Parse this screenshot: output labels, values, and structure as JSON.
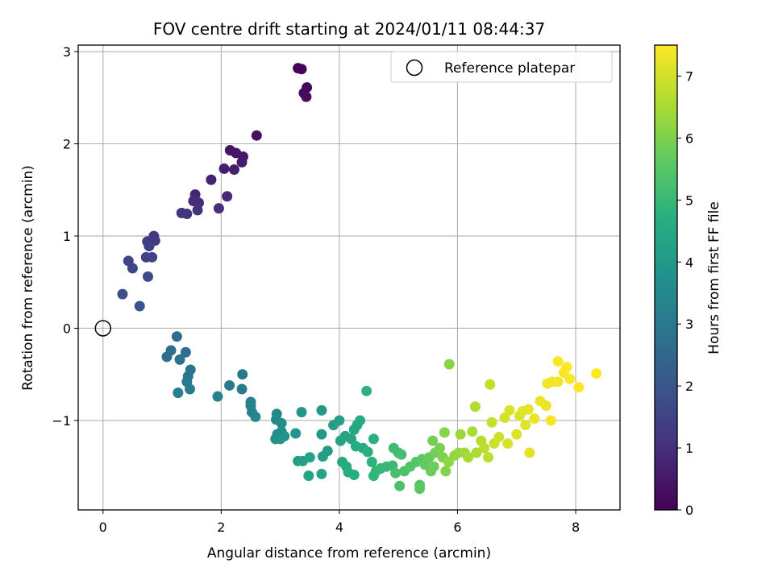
{
  "chart_data": {
    "type": "scatter",
    "title": "FOV centre drift starting at 2024/01/11 08:44:37",
    "xlabel": "Angular distance from reference (arcmin)",
    "ylabel": "Rotation from reference (arcmin)",
    "xlim": [
      -0.42,
      8.75
    ],
    "ylim": [
      -1.97,
      3.07
    ],
    "xticks": [
      0,
      2,
      4,
      6,
      8
    ],
    "yticks": [
      -1,
      0,
      1,
      2,
      3
    ],
    "xtick_labels": [
      "0",
      "2",
      "4",
      "6",
      "8"
    ],
    "ytick_labels": [
      "−1",
      "0",
      "1",
      "2",
      "3"
    ],
    "grid": true,
    "legend": {
      "placement": "top-right",
      "entries": [
        "Reference platepar"
      ]
    },
    "reference_point": {
      "x": 0,
      "y": 0,
      "label": "Reference platepar"
    },
    "colorbar": {
      "label": "Hours from first FF file",
      "colormap": "viridis",
      "range": [
        0,
        7.5
      ],
      "ticks": [
        0,
        1,
        2,
        3,
        4,
        5,
        6,
        7
      ],
      "tick_labels": [
        "0",
        "1",
        "2",
        "3",
        "4",
        "5",
        "6",
        "7"
      ]
    },
    "series": [
      {
        "color_by": "hours",
        "points": [
          {
            "x": 3.3,
            "y": 2.82,
            "h": 0.05
          },
          {
            "x": 3.36,
            "y": 2.81,
            "h": 0.1
          },
          {
            "x": 3.45,
            "y": 2.61,
            "h": 0.15
          },
          {
            "x": 3.4,
            "y": 2.55,
            "h": 0.2
          },
          {
            "x": 3.44,
            "y": 2.51,
            "h": 0.25
          },
          {
            "x": 2.6,
            "y": 2.09,
            "h": 0.35
          },
          {
            "x": 2.15,
            "y": 1.93,
            "h": 0.4
          },
          {
            "x": 2.25,
            "y": 1.9,
            "h": 0.45
          },
          {
            "x": 2.37,
            "y": 1.86,
            "h": 0.5
          },
          {
            "x": 2.35,
            "y": 1.8,
            "h": 0.55
          },
          {
            "x": 2.05,
            "y": 1.73,
            "h": 0.6
          },
          {
            "x": 2.22,
            "y": 1.72,
            "h": 0.65
          },
          {
            "x": 1.83,
            "y": 1.61,
            "h": 0.7
          },
          {
            "x": 1.56,
            "y": 1.45,
            "h": 0.8
          },
          {
            "x": 2.1,
            "y": 1.43,
            "h": 0.85
          },
          {
            "x": 1.53,
            "y": 1.38,
            "h": 0.9
          },
          {
            "x": 1.62,
            "y": 1.36,
            "h": 0.95
          },
          {
            "x": 1.96,
            "y": 1.3,
            "h": 1.0
          },
          {
            "x": 1.6,
            "y": 1.28,
            "h": 1.05
          },
          {
            "x": 1.33,
            "y": 1.25,
            "h": 1.1
          },
          {
            "x": 1.42,
            "y": 1.24,
            "h": 1.15
          },
          {
            "x": 0.86,
            "y": 1.0,
            "h": 1.25
          },
          {
            "x": 0.88,
            "y": 0.95,
            "h": 1.3
          },
          {
            "x": 0.75,
            "y": 0.94,
            "h": 1.35
          },
          {
            "x": 0.78,
            "y": 0.89,
            "h": 1.4
          },
          {
            "x": 0.73,
            "y": 0.77,
            "h": 1.45
          },
          {
            "x": 0.83,
            "y": 0.77,
            "h": 1.5
          },
          {
            "x": 0.43,
            "y": 0.73,
            "h": 1.55
          },
          {
            "x": 0.5,
            "y": 0.65,
            "h": 1.6
          },
          {
            "x": 0.76,
            "y": 0.56,
            "h": 1.7
          },
          {
            "x": 0.33,
            "y": 0.37,
            "h": 1.8
          },
          {
            "x": 0.62,
            "y": 0.24,
            "h": 1.9
          },
          {
            "x": 1.25,
            "y": -0.09,
            "h": 2.6
          },
          {
            "x": 1.15,
            "y": -0.24,
            "h": 2.65
          },
          {
            "x": 1.4,
            "y": -0.26,
            "h": 2.7
          },
          {
            "x": 1.08,
            "y": -0.31,
            "h": 2.75
          },
          {
            "x": 1.3,
            "y": -0.34,
            "h": 2.8
          },
          {
            "x": 1.48,
            "y": -0.45,
            "h": 2.85
          },
          {
            "x": 1.44,
            "y": -0.52,
            "h": 2.9
          },
          {
            "x": 1.42,
            "y": -0.58,
            "h": 2.95
          },
          {
            "x": 2.36,
            "y": -0.5,
            "h": 3.0
          },
          {
            "x": 2.14,
            "y": -0.62,
            "h": 3.05
          },
          {
            "x": 2.35,
            "y": -0.66,
            "h": 3.1
          },
          {
            "x": 1.47,
            "y": -0.66,
            "h": 3.15
          },
          {
            "x": 1.27,
            "y": -0.7,
            "h": 3.2
          },
          {
            "x": 1.94,
            "y": -0.74,
            "h": 3.25
          },
          {
            "x": 2.5,
            "y": -0.8,
            "h": 3.3
          },
          {
            "x": 2.5,
            "y": -0.84,
            "h": 3.35
          },
          {
            "x": 2.52,
            "y": -0.91,
            "h": 3.4
          },
          {
            "x": 2.58,
            "y": -0.96,
            "h": 3.45
          },
          {
            "x": 2.94,
            "y": -0.93,
            "h": 3.5
          },
          {
            "x": 2.93,
            "y": -0.99,
            "h": 3.55
          },
          {
            "x": 3.02,
            "y": -1.03,
            "h": 3.6
          },
          {
            "x": 3.02,
            "y": -1.12,
            "h": 3.65
          },
          {
            "x": 2.95,
            "y": -1.15,
            "h": 3.7
          },
          {
            "x": 2.92,
            "y": -1.2,
            "h": 3.75
          },
          {
            "x": 3.0,
            "y": -1.2,
            "h": 3.8
          },
          {
            "x": 3.07,
            "y": -1.17,
            "h": 3.85
          },
          {
            "x": 3.26,
            "y": -1.14,
            "h": 3.9
          },
          {
            "x": 3.36,
            "y": -0.91,
            "h": 3.95
          },
          {
            "x": 3.7,
            "y": -0.89,
            "h": 4.0
          },
          {
            "x": 3.7,
            "y": -1.15,
            "h": 4.05
          },
          {
            "x": 3.8,
            "y": -1.33,
            "h": 4.1
          },
          {
            "x": 3.72,
            "y": -1.39,
            "h": 4.15
          },
          {
            "x": 3.9,
            "y": -1.05,
            "h": 4.2
          },
          {
            "x": 4.0,
            "y": -1.0,
            "h": 4.25
          },
          {
            "x": 4.02,
            "y": -1.22,
            "h": 4.3
          },
          {
            "x": 4.1,
            "y": -1.17,
            "h": 4.35
          },
          {
            "x": 4.2,
            "y": -1.2,
            "h": 4.4
          },
          {
            "x": 4.25,
            "y": -1.1,
            "h": 4.45
          },
          {
            "x": 4.3,
            "y": -1.05,
            "h": 4.5
          },
          {
            "x": 4.35,
            "y": -1.0,
            "h": 4.55
          },
          {
            "x": 4.28,
            "y": -1.28,
            "h": 4.6
          },
          {
            "x": 4.4,
            "y": -1.3,
            "h": 4.65
          },
          {
            "x": 4.48,
            "y": -1.34,
            "h": 4.7
          },
          {
            "x": 4.58,
            "y": -1.2,
            "h": 4.75
          },
          {
            "x": 4.46,
            "y": -0.68,
            "h": 4.8
          },
          {
            "x": 3.3,
            "y": -1.44,
            "h": 4.2
          },
          {
            "x": 3.38,
            "y": -1.44,
            "h": 4.25
          },
          {
            "x": 3.5,
            "y": -1.4,
            "h": 4.3
          },
          {
            "x": 3.48,
            "y": -1.6,
            "h": 4.35
          },
          {
            "x": 3.7,
            "y": -1.58,
            "h": 4.4
          },
          {
            "x": 4.05,
            "y": -1.45,
            "h": 4.55
          },
          {
            "x": 4.12,
            "y": -1.5,
            "h": 4.6
          },
          {
            "x": 4.15,
            "y": -1.56,
            "h": 4.65
          },
          {
            "x": 4.25,
            "y": -1.59,
            "h": 4.7
          },
          {
            "x": 4.55,
            "y": -1.45,
            "h": 4.8
          },
          {
            "x": 4.58,
            "y": -1.6,
            "h": 4.85
          },
          {
            "x": 4.62,
            "y": -1.55,
            "h": 4.9
          },
          {
            "x": 4.7,
            "y": -1.52,
            "h": 4.95
          },
          {
            "x": 4.8,
            "y": -1.5,
            "h": 5.0
          },
          {
            "x": 4.9,
            "y": -1.49,
            "h": 5.05
          },
          {
            "x": 4.92,
            "y": -1.3,
            "h": 5.1
          },
          {
            "x": 5.0,
            "y": -1.35,
            "h": 5.15
          },
          {
            "x": 5.05,
            "y": -1.37,
            "h": 5.2
          },
          {
            "x": 4.95,
            "y": -1.57,
            "h": 5.25
          },
          {
            "x": 5.02,
            "y": -1.71,
            "h": 5.3
          },
          {
            "x": 5.1,
            "y": -1.55,
            "h": 5.35
          },
          {
            "x": 5.2,
            "y": -1.5,
            "h": 5.4
          },
          {
            "x": 5.3,
            "y": -1.45,
            "h": 5.45
          },
          {
            "x": 5.36,
            "y": -1.7,
            "h": 5.5
          },
          {
            "x": 5.36,
            "y": -1.74,
            "h": 5.55
          },
          {
            "x": 5.4,
            "y": -1.42,
            "h": 5.6
          },
          {
            "x": 5.45,
            "y": -1.48,
            "h": 5.65
          },
          {
            "x": 5.52,
            "y": -1.4,
            "h": 5.7
          },
          {
            "x": 5.55,
            "y": -1.55,
            "h": 5.75
          },
          {
            "x": 5.6,
            "y": -1.5,
            "h": 5.8
          },
          {
            "x": 5.62,
            "y": -1.35,
            "h": 5.85
          },
          {
            "x": 5.58,
            "y": -1.22,
            "h": 5.9
          },
          {
            "x": 5.7,
            "y": -1.3,
            "h": 5.95
          },
          {
            "x": 5.75,
            "y": -1.4,
            "h": 6.0
          },
          {
            "x": 5.8,
            "y": -1.55,
            "h": 6.05
          },
          {
            "x": 5.78,
            "y": -1.13,
            "h": 6.1
          },
          {
            "x": 5.86,
            "y": -0.39,
            "h": 6.15
          },
          {
            "x": 5.85,
            "y": -1.45,
            "h": 6.2
          },
          {
            "x": 5.95,
            "y": -1.38,
            "h": 6.25
          },
          {
            "x": 6.02,
            "y": -1.35,
            "h": 6.3
          },
          {
            "x": 6.05,
            "y": -1.15,
            "h": 6.35
          },
          {
            "x": 6.12,
            "y": -1.35,
            "h": 6.4
          },
          {
            "x": 6.18,
            "y": -1.4,
            "h": 6.45
          },
          {
            "x": 6.25,
            "y": -1.12,
            "h": 6.5
          },
          {
            "x": 6.32,
            "y": -1.35,
            "h": 6.55
          },
          {
            "x": 6.3,
            "y": -0.85,
            "h": 6.6
          },
          {
            "x": 6.4,
            "y": -1.22,
            "h": 6.65
          },
          {
            "x": 6.45,
            "y": -1.3,
            "h": 6.7
          },
          {
            "x": 6.52,
            "y": -1.4,
            "h": 6.75
          },
          {
            "x": 6.55,
            "y": -0.61,
            "h": 6.8
          },
          {
            "x": 6.58,
            "y": -1.02,
            "h": 6.85
          },
          {
            "x": 6.62,
            "y": -1.25,
            "h": 6.9
          },
          {
            "x": 6.7,
            "y": -1.18,
            "h": 6.95
          },
          {
            "x": 6.8,
            "y": -0.97,
            "h": 7.0
          },
          {
            "x": 6.88,
            "y": -0.89,
            "h": 7.05
          },
          {
            "x": 6.85,
            "y": -1.25,
            "h": 7.05
          },
          {
            "x": 7.0,
            "y": -1.15,
            "h": 7.1
          },
          {
            "x": 7.05,
            "y": -0.95,
            "h": 7.1
          },
          {
            "x": 7.1,
            "y": -0.9,
            "h": 7.15
          },
          {
            "x": 7.15,
            "y": -1.05,
            "h": 7.15
          },
          {
            "x": 7.22,
            "y": -1.35,
            "h": 7.2
          },
          {
            "x": 7.2,
            "y": -0.88,
            "h": 7.2
          },
          {
            "x": 7.3,
            "y": -0.98,
            "h": 7.25
          },
          {
            "x": 7.4,
            "y": -0.79,
            "h": 7.3
          },
          {
            "x": 7.5,
            "y": -0.84,
            "h": 7.3
          },
          {
            "x": 7.52,
            "y": -0.6,
            "h": 7.35
          },
          {
            "x": 7.6,
            "y": -0.58,
            "h": 7.35
          },
          {
            "x": 7.58,
            "y": -1.0,
            "h": 7.4
          },
          {
            "x": 7.7,
            "y": -0.58,
            "h": 7.4
          },
          {
            "x": 7.7,
            "y": -0.36,
            "h": 7.45
          },
          {
            "x": 7.8,
            "y": -0.48,
            "h": 7.45
          },
          {
            "x": 7.85,
            "y": -0.42,
            "h": 7.5
          },
          {
            "x": 7.9,
            "y": -0.55,
            "h": 7.5
          },
          {
            "x": 8.05,
            "y": -0.64,
            "h": 7.5
          },
          {
            "x": 8.35,
            "y": -0.49,
            "h": 7.5
          }
        ]
      }
    ]
  }
}
